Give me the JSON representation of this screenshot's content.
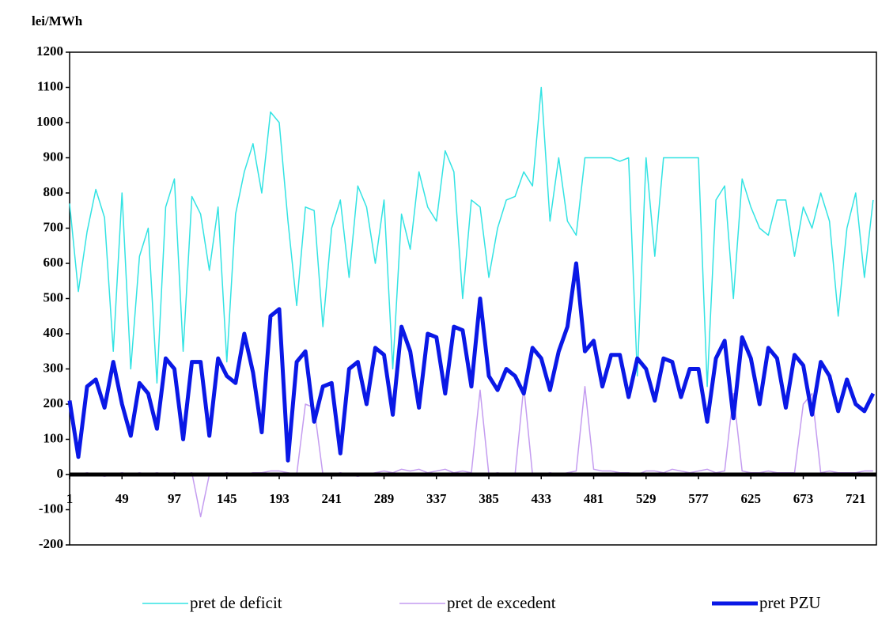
{
  "chart_data": {
    "type": "line",
    "y_label": "lei/MWh",
    "x": [
      1,
      9,
      17,
      25,
      33,
      41,
      49,
      57,
      65,
      73,
      81,
      89,
      97,
      105,
      113,
      121,
      129,
      137,
      145,
      153,
      161,
      169,
      177,
      185,
      193,
      201,
      209,
      217,
      225,
      233,
      241,
      249,
      257,
      265,
      273,
      281,
      289,
      297,
      305,
      313,
      321,
      329,
      337,
      345,
      353,
      361,
      369,
      377,
      385,
      393,
      401,
      409,
      417,
      425,
      433,
      441,
      449,
      457,
      465,
      473,
      481,
      489,
      497,
      505,
      513,
      521,
      529,
      537,
      545,
      553,
      561,
      569,
      577,
      585,
      593,
      601,
      609,
      617,
      625,
      633,
      641,
      649,
      657,
      665,
      673,
      681,
      689,
      697,
      705,
      713,
      721,
      729,
      737
    ],
    "xlim": [
      1,
      740
    ],
    "xticks": [
      1,
      49,
      97,
      145,
      193,
      241,
      289,
      337,
      385,
      433,
      481,
      529,
      577,
      625,
      673,
      721
    ],
    "ylim": [
      -200,
      1200
    ],
    "yticks": [
      -200,
      -100,
      0,
      100,
      200,
      300,
      400,
      500,
      600,
      700,
      800,
      900,
      1000,
      1100,
      1200
    ],
    "grid": false,
    "legend": "bottom",
    "series": [
      {
        "name": "pret de deficit",
        "color": "#33e3e3",
        "width": 1.5,
        "values": [
          770,
          520,
          690,
          810,
          730,
          350,
          800,
          300,
          620,
          700,
          260,
          760,
          840,
          350,
          790,
          740,
          580,
          760,
          320,
          740,
          860,
          940,
          800,
          1030,
          1000,
          720,
          480,
          760,
          750,
          420,
          700,
          780,
          560,
          820,
          760,
          600,
          780,
          300,
          740,
          640,
          860,
          760,
          720,
          920,
          860,
          500,
          780,
          760,
          560,
          700,
          780,
          790,
          860,
          820,
          1100,
          720,
          900,
          720,
          680,
          900,
          900,
          900,
          900,
          890,
          900,
          280,
          900,
          620,
          900,
          900,
          900,
          900,
          900,
          250,
          780,
          820,
          500,
          840,
          760,
          700,
          680,
          780,
          780,
          620,
          760,
          700,
          800,
          720,
          450,
          700,
          800,
          560,
          780
        ]
      },
      {
        "name": "pret de excedent",
        "color": "#c49cf0",
        "width": 1.5,
        "values": [
          0,
          0,
          5,
          0,
          -5,
          0,
          5,
          0,
          5,
          0,
          5,
          0,
          5,
          0,
          5,
          -120,
          0,
          0,
          5,
          0,
          0,
          5,
          5,
          10,
          10,
          5,
          0,
          200,
          190,
          0,
          0,
          5,
          0,
          -5,
          0,
          5,
          10,
          5,
          15,
          10,
          15,
          5,
          10,
          15,
          5,
          10,
          5,
          240,
          0,
          5,
          0,
          0,
          250,
          0,
          0,
          5,
          0,
          5,
          10,
          250,
          15,
          10,
          10,
          5,
          5,
          0,
          10,
          10,
          5,
          15,
          10,
          5,
          10,
          15,
          5,
          10,
          230,
          10,
          5,
          5,
          10,
          5,
          5,
          5,
          200,
          230,
          5,
          10,
          5,
          5,
          5,
          10,
          10
        ]
      },
      {
        "name": "pret PZU",
        "color": "#0a18e6",
        "width": 5,
        "values": [
          210,
          50,
          250,
          270,
          190,
          320,
          200,
          110,
          260,
          230,
          130,
          330,
          300,
          100,
          320,
          320,
          110,
          330,
          280,
          260,
          400,
          290,
          120,
          450,
          470,
          40,
          320,
          350,
          150,
          250,
          260,
          60,
          300,
          320,
          200,
          360,
          340,
          170,
          420,
          350,
          190,
          400,
          390,
          230,
          420,
          410,
          250,
          500,
          280,
          240,
          300,
          280,
          230,
          360,
          330,
          240,
          350,
          420,
          600,
          350,
          380,
          250,
          340,
          340,
          220,
          330,
          300,
          210,
          330,
          320,
          220,
          300,
          300,
          150,
          330,
          380,
          160,
          390,
          330,
          200,
          360,
          330,
          190,
          340,
          310,
          170,
          320,
          280,
          180,
          270,
          200,
          180,
          230
        ]
      }
    ]
  }
}
